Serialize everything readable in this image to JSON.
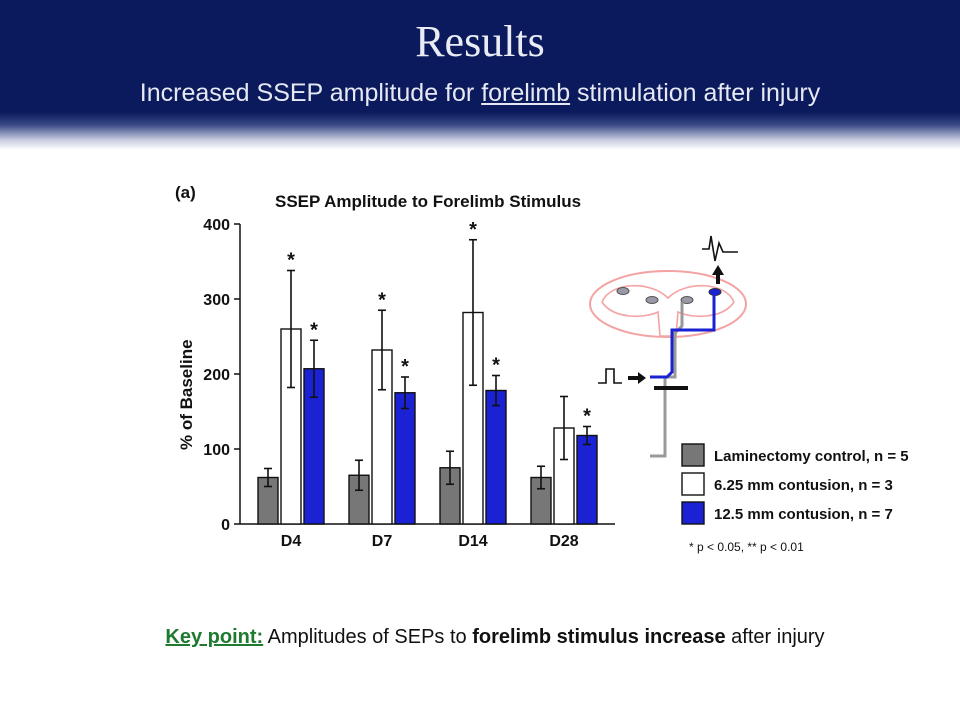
{
  "slide": {
    "title": "Results",
    "subtitle_pre": "Increased SSEP amplitude for ",
    "subtitle_underlined": "forelimb",
    "subtitle_post": " stimulation after injury",
    "keypoint_label": "Key point:",
    "keypoint_text1": " Amplitudes of SEPs to ",
    "keypoint_bold": "forelimb stimulus increase",
    "keypoint_text2": " after injury",
    "significance_note": "* p < 0.05, ** p < 0.01"
  },
  "chart_data": {
    "type": "bar",
    "panel_label": "(a)",
    "title": "SSEP Amplitude to Forelimb Stimulus",
    "ylabel": "% of Baseline",
    "xlabel": "",
    "ylim": [
      0,
      400
    ],
    "yticks": [
      0,
      100,
      200,
      300,
      400
    ],
    "categories": [
      "D4",
      "D7",
      "D14",
      "D28"
    ],
    "series": [
      {
        "name": "Laminectomy control, n = 5",
        "color": "#777777",
        "values": [
          62,
          65,
          75,
          62
        ],
        "errors": [
          12,
          20,
          22,
          15
        ],
        "significance": [
          "",
          "",
          "",
          ""
        ]
      },
      {
        "name": "6.25 mm contusion, n = 3",
        "color": "#ffffff",
        "values": [
          260,
          232,
          282,
          128
        ],
        "errors": [
          78,
          53,
          97,
          42
        ],
        "significance": [
          "*",
          "*",
          "*",
          ""
        ]
      },
      {
        "name": "12.5 mm contusion, n = 7",
        "color": "#1a22d4",
        "values": [
          207,
          175,
          178,
          118
        ],
        "errors": [
          38,
          21,
          20,
          12
        ],
        "significance": [
          "*",
          "*",
          "*",
          "*"
        ]
      }
    ],
    "grid": false,
    "legend_position": "right"
  }
}
